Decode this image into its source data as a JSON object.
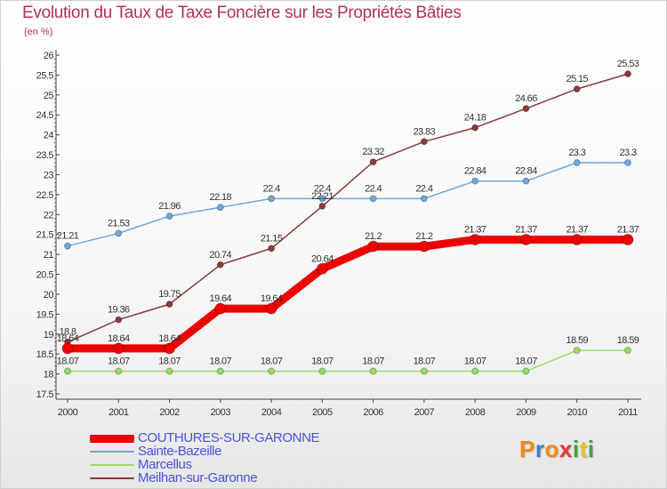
{
  "title": "Evolution du Taux de Taxe Foncière sur les Propriétés Bâties",
  "unit_label": "(en %)",
  "logo": {
    "text": "Proxiti",
    "letters": [
      {
        "ch": "P",
        "color": "#f08a1c"
      },
      {
        "ch": "r",
        "color": "#3a7fd0"
      },
      {
        "ch": "o",
        "color": "#f08a1c"
      },
      {
        "ch": "x",
        "color": "#e03a30"
      },
      {
        "ch": "i",
        "color": "#3aa63a"
      },
      {
        "ch": "t",
        "color": "#f0c020"
      },
      {
        "ch": "i",
        "color": "#3aa63a"
      }
    ]
  },
  "chart_data": {
    "type": "line",
    "title": "Evolution du Taux de Taxe Foncière sur les Propriétés Bâties",
    "ylabel": "(en %)",
    "xlabel": "",
    "x": [
      "2000",
      "2001",
      "2002",
      "2003",
      "2004",
      "2005",
      "2006",
      "2007",
      "2008",
      "2009",
      "2010",
      "2011"
    ],
    "ylim": [
      17.5,
      26
    ],
    "yticks": [
      "17.5",
      "18",
      "18.5",
      "19",
      "19.5",
      "20",
      "20.5",
      "21",
      "21.5",
      "22",
      "22.5",
      "23",
      "23.5",
      "24",
      "24.5",
      "25",
      "25.5",
      "26"
    ],
    "grid": false,
    "legend_position": "bottom-left",
    "series": [
      {
        "name": "COUTHURES-SUR-GARONNE",
        "color": "#ee0000",
        "values": [
          18.64,
          18.64,
          18.64,
          19.64,
          19.64,
          20.64,
          21.2,
          21.2,
          21.37,
          21.37,
          21.37,
          21.37
        ],
        "labels": [
          "18.64",
          "18.64",
          "18.64",
          "19.64",
          "19.64",
          "20.64",
          "21.2",
          "21.2",
          "21.37",
          "21.37",
          "21.37",
          "21.37"
        ]
      },
      {
        "name": "Sainte-Bazeille",
        "color": "#6fa8dc",
        "values": [
          21.21,
          21.53,
          21.96,
          22.18,
          22.4,
          22.4,
          22.4,
          22.4,
          22.84,
          22.84,
          23.3,
          23.3
        ],
        "labels": [
          "21.21",
          "21.53",
          "21.96",
          "22.18",
          "22.4",
          "22.4",
          "22.4",
          "22.4",
          "22.84",
          "22.84",
          "23.3",
          "23.3"
        ]
      },
      {
        "name": "Marcellus",
        "color": "#99dd66",
        "values": [
          18.07,
          18.07,
          18.07,
          18.07,
          18.07,
          18.07,
          18.07,
          18.07,
          18.07,
          18.07,
          18.59,
          18.59
        ],
        "labels": [
          "18.07",
          "18.07",
          "18.07",
          "18.07",
          "18.07",
          "18.07",
          "18.07",
          "18.07",
          "18.07",
          "18.07",
          "18.59",
          "18.59"
        ]
      },
      {
        "name": "Meilhan-sur-Garonne",
        "color": "#8b3a3a",
        "values": [
          18.8,
          19.36,
          19.75,
          20.74,
          21.15,
          22.21,
          23.32,
          23.83,
          24.18,
          24.66,
          25.15,
          25.53
        ],
        "labels": [
          "18.8",
          "19.36",
          "19.75",
          "20.74",
          "21.15",
          "22.21",
          "23.32",
          "23.83",
          "24.18",
          "24.66",
          "25.15",
          "25.53"
        ]
      }
    ]
  }
}
